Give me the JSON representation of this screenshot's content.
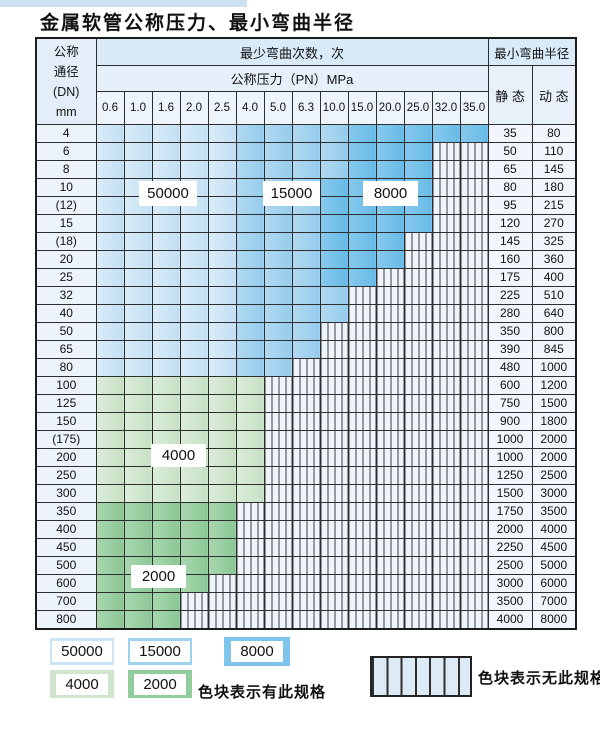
{
  "page": {
    "title": "金属软管公称压力、最小弯曲半径"
  },
  "table": {
    "header": {
      "dn_lines": [
        "公称",
        "通径",
        "(DN)",
        "mm"
      ],
      "cycles_label": "最少弯曲次数，次",
      "pressure_label": "公称压力（PN）MPa",
      "radius_label": "最小弯曲半径",
      "static_label": "静 态",
      "dynamic_label": "动 态",
      "pressure_ticks": [
        "0.6",
        "1.0",
        "1.6",
        "2.0",
        "2.5",
        "4.0",
        "5.0",
        "6.3",
        "10.0",
        "15.0",
        "20.0",
        "25.0",
        "32.0",
        "35.0"
      ]
    },
    "bands": {
      "1": {
        "label": "50000",
        "from": "#daecf9",
        "to": "#c2e0f3",
        "swatch": "#cbe5f6"
      },
      "2": {
        "label": "15000",
        "from": "#b2d9f1",
        "to": "#94ccec",
        "swatch": "#9dd1ef"
      },
      "3": {
        "label": "8000",
        "from": "#89c9ee",
        "to": "#66bbe7",
        "swatch": "#7fc4ea"
      },
      "4": {
        "label": "4000",
        "from": "#dcecda",
        "to": "#c6e1c4",
        "swatch": "#cfe5cd"
      },
      "5": {
        "label": "2000",
        "from": "#a9d7af",
        "to": "#8bc795",
        "swatch": "#92cc9d"
      }
    },
    "hatch_meaning": "无此规格",
    "rows": [
      {
        "dn": "4",
        "cells": "11111222233333",
        "static": "35",
        "dynamic": "80"
      },
      {
        "dn": "6",
        "cells": "11111222233300",
        "static": "50",
        "dynamic": "110"
      },
      {
        "dn": "8",
        "cells": "11111222233300",
        "static": "65",
        "dynamic": "145"
      },
      {
        "dn": "10",
        "cells": "11111222333300",
        "static": "80",
        "dynamic": "180"
      },
      {
        "dn": "(12)",
        "cells": "11111222333300",
        "static": "95",
        "dynamic": "215"
      },
      {
        "dn": "15",
        "cells": "11111222333300",
        "static": "120",
        "dynamic": "270"
      },
      {
        "dn": "(18)",
        "cells": "11111222333000",
        "static": "145",
        "dynamic": "325"
      },
      {
        "dn": "20",
        "cells": "11111222333000",
        "static": "160",
        "dynamic": "360"
      },
      {
        "dn": "25",
        "cells": "11111222330000",
        "static": "175",
        "dynamic": "400"
      },
      {
        "dn": "32",
        "cells": "11111222200000",
        "static": "225",
        "dynamic": "510"
      },
      {
        "dn": "40",
        "cells": "11111222200000",
        "static": "280",
        "dynamic": "640"
      },
      {
        "dn": "50",
        "cells": "11111222000000",
        "static": "350",
        "dynamic": "800"
      },
      {
        "dn": "65",
        "cells": "11111222000000",
        "static": "390",
        "dynamic": "845"
      },
      {
        "dn": "80",
        "cells": "11111220000000",
        "static": "480",
        "dynamic": "1000"
      },
      {
        "dn": "100",
        "cells": "44444400000000",
        "static": "600",
        "dynamic": "1200"
      },
      {
        "dn": "125",
        "cells": "44444400000000",
        "static": "750",
        "dynamic": "1500"
      },
      {
        "dn": "150",
        "cells": "44444400000000",
        "static": "900",
        "dynamic": "1800"
      },
      {
        "dn": "(175)",
        "cells": "44444400000000",
        "static": "1000",
        "dynamic": "2000"
      },
      {
        "dn": "200",
        "cells": "44444400000000",
        "static": "1000",
        "dynamic": "2000"
      },
      {
        "dn": "250",
        "cells": "44444400000000",
        "static": "1250",
        "dynamic": "2500"
      },
      {
        "dn": "300",
        "cells": "44444400000000",
        "static": "1500",
        "dynamic": "3000"
      },
      {
        "dn": "350",
        "cells": "55555000000000",
        "static": "1750",
        "dynamic": "3500"
      },
      {
        "dn": "400",
        "cells": "55555000000000",
        "static": "2000",
        "dynamic": "4000"
      },
      {
        "dn": "450",
        "cells": "55555000000000",
        "static": "2250",
        "dynamic": "4500"
      },
      {
        "dn": "500",
        "cells": "55555000000000",
        "static": "2500",
        "dynamic": "5000"
      },
      {
        "dn": "600",
        "cells": "55550000000000",
        "static": "3000",
        "dynamic": "6000"
      },
      {
        "dn": "700",
        "cells": "55500000000000",
        "static": "3500",
        "dynamic": "7000"
      },
      {
        "dn": "800",
        "cells": "55500000000000",
        "static": "4000",
        "dynamic": "8000"
      }
    ]
  },
  "overlays": [
    {
      "label": "50000"
    },
    {
      "label": "15000"
    },
    {
      "label": "8000"
    },
    {
      "label": "4000"
    },
    {
      "label": "2000"
    }
  ],
  "legend": {
    "swatches": [
      {
        "label": "50000",
        "band": "1"
      },
      {
        "label": "15000",
        "band": "2"
      },
      {
        "label": "8000",
        "band": "3"
      },
      {
        "label": "4000",
        "band": "4"
      },
      {
        "label": "2000",
        "band": "5"
      }
    ],
    "available_note": "色块表示有此规格",
    "unavailable_note": "色块表示无此规格"
  }
}
